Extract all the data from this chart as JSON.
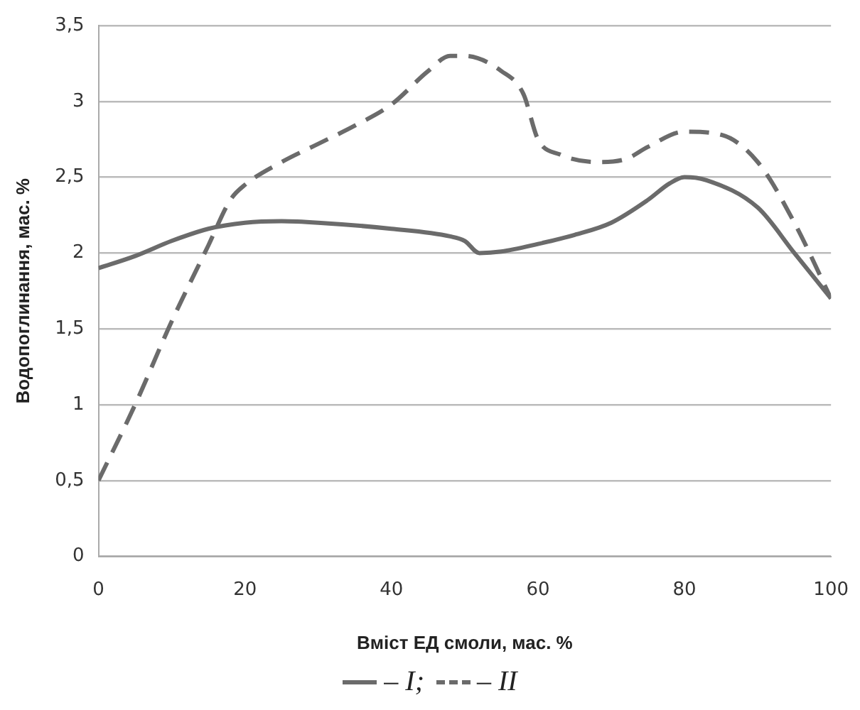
{
  "chart_data": {
    "type": "line",
    "xlabel": "Вміст ЕД смоли, мас. %",
    "ylabel": "Водопоглинання, мас. %",
    "xlim": [
      0,
      100
    ],
    "xticks": [
      0,
      20,
      40,
      60,
      80,
      100
    ],
    "ylim": [
      0,
      3.5
    ],
    "yticks": [
      0,
      {
        "value": 0.5,
        "label": "0,5"
      },
      1,
      {
        "value": 1.5,
        "label": "1,5"
      },
      2,
      {
        "value": 2.5,
        "label": "2,5"
      },
      3,
      {
        "value": 3.5,
        "label": "3,5"
      }
    ],
    "grid": "y",
    "legend": "bottom",
    "marker": "none",
    "series": [
      {
        "name": "– I;",
        "color": "#6b6b6b",
        "line_style": "solid",
        "x": [
          0,
          5,
          10,
          15,
          20,
          25,
          30,
          40,
          48,
          50,
          52,
          55,
          60,
          65,
          70,
          75,
          78,
          80,
          83,
          90,
          95,
          100
        ],
        "values": [
          1.9,
          1.98,
          2.08,
          2.16,
          2.2,
          2.21,
          2.2,
          2.16,
          2.11,
          2.08,
          2.0,
          2.01,
          2.06,
          2.12,
          2.2,
          2.35,
          2.46,
          2.5,
          2.48,
          2.3,
          2.0,
          1.7
        ]
      },
      {
        "name": "– II",
        "color": "#6b6b6b",
        "line_style": "dashed",
        "x": [
          0,
          5,
          10,
          15,
          18,
          20,
          25,
          30,
          35,
          40,
          45,
          48,
          50,
          55,
          58,
          60,
          63,
          68,
          72,
          75,
          80,
          85,
          90,
          95,
          100
        ],
        "values": [
          0.5,
          1.0,
          1.55,
          2.05,
          2.35,
          2.45,
          2.6,
          2.72,
          2.84,
          2.98,
          3.2,
          3.3,
          3.3,
          3.2,
          3.05,
          2.75,
          2.65,
          2.6,
          2.62,
          2.7,
          2.8,
          2.78,
          2.6,
          2.2,
          1.7
        ]
      }
    ]
  }
}
